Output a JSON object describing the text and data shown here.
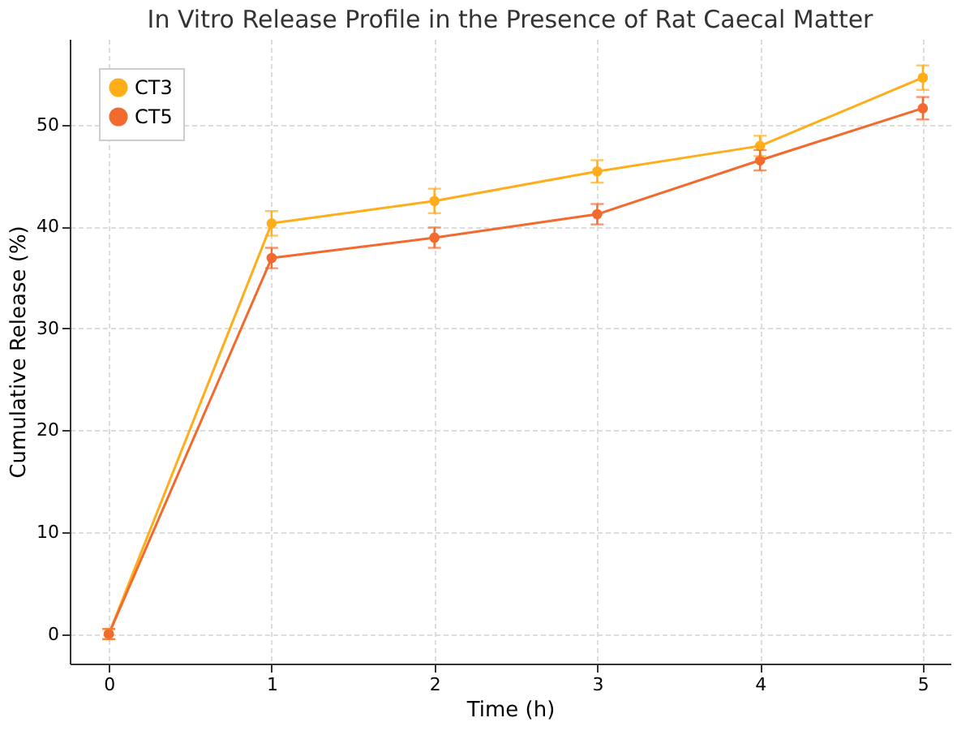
{
  "chart_data": {
    "type": "line",
    "title": "In Vitro Release Profile in the Presence of Rat Caecal Matter",
    "xlabel": "Time (h)",
    "ylabel": "Cumulative Release (%)",
    "x": [
      0,
      1,
      2,
      3,
      4,
      5
    ],
    "series": [
      {
        "name": "CT3",
        "color": "#ffae1a",
        "values": [
          0,
          40.3,
          42.5,
          45.4,
          47.9,
          54.6
        ],
        "errors": [
          0.5,
          1.2,
          1.2,
          1.1,
          1.0,
          1.2
        ]
      },
      {
        "name": "CT5",
        "color": "#f26a2e",
        "values": [
          0,
          36.9,
          38.9,
          41.2,
          46.5,
          51.6
        ],
        "errors": [
          0.5,
          1.0,
          1.0,
          1.0,
          1.0,
          1.1
        ]
      }
    ],
    "xlim": [
      -0.24,
      5.17
    ],
    "xticks": [
      0,
      1,
      2,
      3,
      4,
      5
    ],
    "ylim": [
      -2.9,
      58.4
    ],
    "yticks": [
      0,
      10,
      20,
      30,
      40,
      50
    ],
    "grid": true,
    "legend": "top left",
    "marker": "circle",
    "line_style": "solid"
  }
}
